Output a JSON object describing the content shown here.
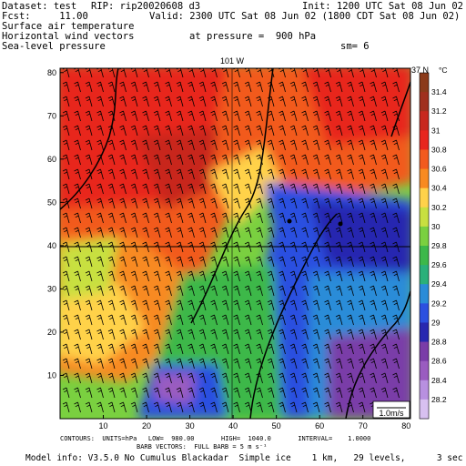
{
  "header": {
    "dataset": "Dataset: test",
    "rip": "RIP: rip20020608 d3",
    "init": "Init: 1200 UTC Sat 08 Jun 02",
    "fcst": "Fcst:     11.00",
    "valid": "Valid: 2300 UTC Sat 08 Jun 02 (1800 CDT Sat 08 Jun 02)",
    "line1": "Surface air temperature",
    "line2": "Horizontal wind vectors",
    "line3": "Sea-level pressure",
    "pressure": "at pressure =  900 hPa",
    "sm": "sm= 6"
  },
  "plot": {
    "top_label": "101 W",
    "right_label": "37 N",
    "unit": "°C",
    "x_ticks": [
      "10",
      "20",
      "30",
      "40",
      "50",
      "60",
      "70",
      "80"
    ],
    "y_ticks": [
      "10",
      "20",
      "30",
      "40",
      "50",
      "60",
      "70",
      "80"
    ],
    "colorbar": [
      "31.4",
      "31.2",
      "31",
      "30.8",
      "30.6",
      "30.4",
      "30.2",
      "30",
      "29.8",
      "29.6",
      "29.4",
      "29.2",
      "29",
      "28.8",
      "28.6",
      "28.4",
      "28.2"
    ],
    "colors": [
      "#8b3a1a",
      "#a0301e",
      "#c8281e",
      "#e8261e",
      "#f25a1e",
      "#f88a20",
      "#ffd24a",
      "#c8e040",
      "#7ad040",
      "#3cb84a",
      "#2ab07a",
      "#2a8cd8",
      "#2c50e0",
      "#2828b0",
      "#7a3ca8",
      "#9a5cc0",
      "#b890e0",
      "#d8c0f0"
    ],
    "box_label": "1.0m/s"
  },
  "footer": {
    "contours": "CONTOURS:  UNITS=hPa   LOW=  980.00       HIGH=  1040.0       INTERVAL=    1.0000",
    "barbs": "BARB VECTORS:  FULL BARB = 5 m s⁻¹",
    "model": "Model info: V3.5.0 No Cumulus Blackadar  Simple ice    1 km,   29 levels,      3 sec"
  }
}
